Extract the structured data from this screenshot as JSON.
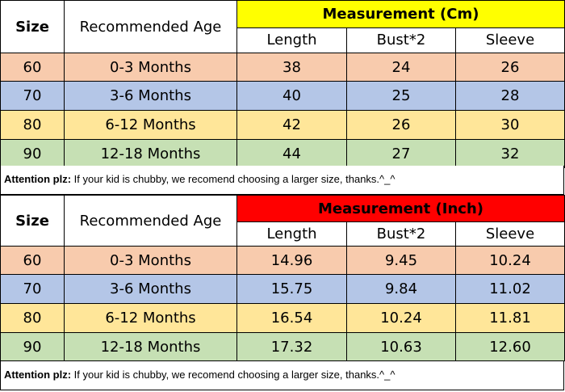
{
  "colors": {
    "row_60": "#f8cbad",
    "row_70": "#b4c6e7",
    "row_80": "#ffe699",
    "row_90": "#c6e0b4",
    "cm_header_bg": "#ffff00",
    "inch_header_bg": "#ff0000"
  },
  "cm_table": {
    "size_header": "Size",
    "age_header": "Recommended Age",
    "measure_header": "Measurement (Cm)",
    "columns": [
      "Length",
      "Bust*2",
      "Sleeve"
    ],
    "rows": [
      {
        "size": "60",
        "age": "0-3 Months",
        "length": "38",
        "bust": "24",
        "sleeve": "26"
      },
      {
        "size": "70",
        "age": "3-6 Months",
        "length": "40",
        "bust": "25",
        "sleeve": "28"
      },
      {
        "size": "80",
        "age": "6-12 Months",
        "length": "42",
        "bust": "26",
        "sleeve": "30"
      },
      {
        "size": "90",
        "age": "12-18 Months",
        "length": "44",
        "bust": "27",
        "sleeve": "32"
      }
    ],
    "note_label": "Attention plz:",
    "note_text": " If your kid is chubby, we recomend choosing a larger size, thanks.^_^"
  },
  "inch_table": {
    "size_header": "Size",
    "age_header": "Recommended Age",
    "measure_header": "Measurement (Inch)",
    "columns": [
      "Length",
      "Bust*2",
      "Sleeve"
    ],
    "rows": [
      {
        "size": "60",
        "age": "0-3 Months",
        "length": "14.96",
        "bust": "9.45",
        "sleeve": "10.24"
      },
      {
        "size": "70",
        "age": "3-6 Months",
        "length": "15.75",
        "bust": "9.84",
        "sleeve": "11.02"
      },
      {
        "size": "80",
        "age": "6-12 Months",
        "length": "16.54",
        "bust": "10.24",
        "sleeve": "11.81"
      },
      {
        "size": "90",
        "age": "12-18 Months",
        "length": "17.32",
        "bust": "10.63",
        "sleeve": "12.60"
      }
    ],
    "note_label": "Attention plz:",
    "note_text": " If your kid is chubby, we recomend choosing a larger size, thanks.^_^"
  }
}
